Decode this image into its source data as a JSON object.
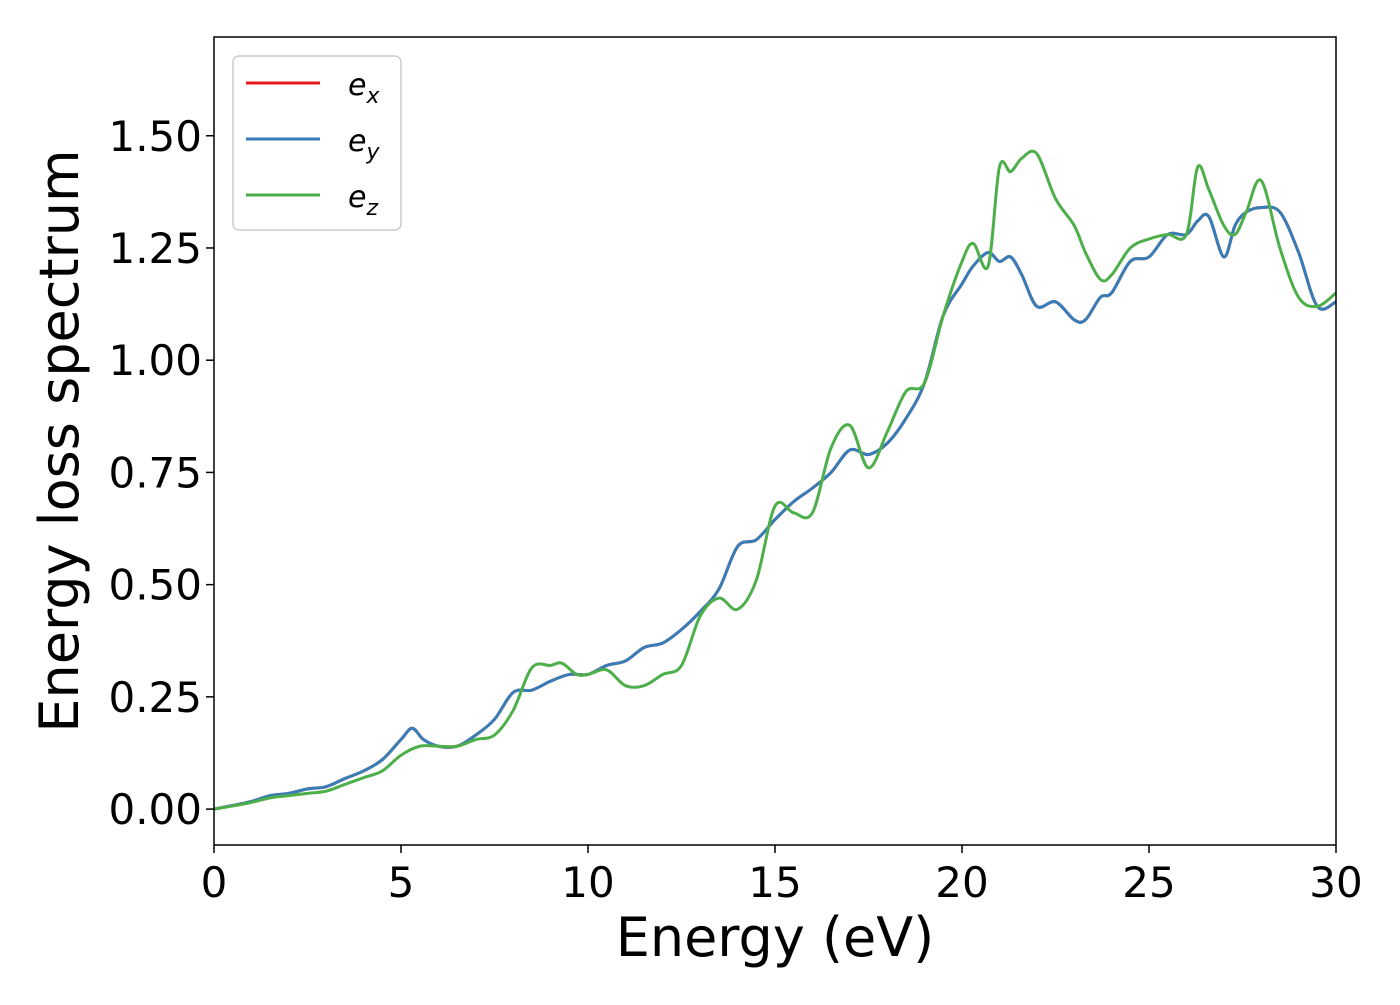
{
  "chart_data": {
    "type": "line",
    "title": "",
    "xlabel": "Energy (eV)",
    "ylabel": "Energy loss spectrum",
    "xlim": [
      0,
      30
    ],
    "ylim": [
      -0.08,
      1.72
    ],
    "xticks": [
      0,
      5,
      10,
      15,
      20,
      25,
      30
    ],
    "yticks": [
      0.0,
      0.25,
      0.5,
      0.75,
      1.0,
      1.25,
      1.5
    ],
    "xtick_labels": [
      "0",
      "5",
      "10",
      "15",
      "20",
      "25",
      "30"
    ],
    "ytick_labels": [
      "0.00",
      "0.25",
      "0.50",
      "0.75",
      "1.00",
      "1.25",
      "1.50"
    ],
    "grid": false,
    "legend": {
      "placement": "top-left",
      "entries": [
        {
          "base": "e",
          "sub": "x",
          "color": "#e41a1c"
        },
        {
          "base": "e",
          "sub": "y",
          "color": "#377eb8"
        },
        {
          "base": "e",
          "sub": "z",
          "color": "#4daf4a"
        }
      ]
    },
    "series": [
      {
        "name": "ex",
        "color": "#e41a1c",
        "x": [
          0,
          0.5,
          1,
          1.5,
          2,
          2.5,
          3,
          3.5,
          4,
          4.5,
          5,
          5.3,
          5.6,
          6,
          6.5,
          7,
          7.5,
          8,
          8.5,
          9,
          9.5,
          10,
          10.5,
          11,
          11.5,
          12,
          12.5,
          13,
          13.5,
          14,
          14.5,
          15,
          15.5,
          16,
          16.5,
          17,
          17.5,
          18,
          18.5,
          19,
          19.5,
          20,
          20.3,
          20.7,
          21,
          21.3,
          21.6,
          22,
          22.5,
          23,
          23.3,
          23.7,
          24,
          24.5,
          25,
          25.5,
          26,
          26.3,
          26.6,
          27,
          27.3,
          27.6,
          28,
          28.5,
          29,
          29.5,
          30
        ],
        "y": [
          0.0,
          0.008,
          0.017,
          0.03,
          0.035,
          0.045,
          0.05,
          0.068,
          0.085,
          0.11,
          0.155,
          0.18,
          0.155,
          0.14,
          0.14,
          0.165,
          0.2,
          0.26,
          0.265,
          0.285,
          0.3,
          0.3,
          0.32,
          0.33,
          0.36,
          0.37,
          0.4,
          0.44,
          0.49,
          0.585,
          0.6,
          0.645,
          0.685,
          0.715,
          0.75,
          0.8,
          0.79,
          0.815,
          0.87,
          0.95,
          1.1,
          1.17,
          1.21,
          1.24,
          1.22,
          1.23,
          1.19,
          1.12,
          1.13,
          1.09,
          1.09,
          1.14,
          1.15,
          1.22,
          1.23,
          1.28,
          1.28,
          1.31,
          1.32,
          1.23,
          1.3,
          1.33,
          1.34,
          1.33,
          1.24,
          1.12,
          1.13
        ]
      },
      {
        "name": "ey",
        "color": "#377eb8",
        "x": [
          0,
          0.5,
          1,
          1.5,
          2,
          2.5,
          3,
          3.5,
          4,
          4.5,
          5,
          5.3,
          5.6,
          6,
          6.5,
          7,
          7.5,
          8,
          8.5,
          9,
          9.5,
          10,
          10.5,
          11,
          11.5,
          12,
          12.5,
          13,
          13.5,
          14,
          14.5,
          15,
          15.5,
          16,
          16.5,
          17,
          17.5,
          18,
          18.5,
          19,
          19.5,
          20,
          20.3,
          20.7,
          21,
          21.3,
          21.6,
          22,
          22.5,
          23,
          23.3,
          23.7,
          24,
          24.5,
          25,
          25.5,
          26,
          26.3,
          26.6,
          27,
          27.3,
          27.6,
          28,
          28.5,
          29,
          29.5,
          30
        ],
        "y": [
          0.0,
          0.008,
          0.017,
          0.03,
          0.035,
          0.045,
          0.05,
          0.068,
          0.085,
          0.11,
          0.155,
          0.18,
          0.155,
          0.14,
          0.14,
          0.165,
          0.2,
          0.26,
          0.265,
          0.285,
          0.3,
          0.3,
          0.32,
          0.33,
          0.36,
          0.37,
          0.4,
          0.44,
          0.49,
          0.585,
          0.6,
          0.645,
          0.685,
          0.715,
          0.75,
          0.8,
          0.79,
          0.815,
          0.87,
          0.95,
          1.1,
          1.17,
          1.21,
          1.24,
          1.22,
          1.23,
          1.19,
          1.12,
          1.13,
          1.09,
          1.09,
          1.14,
          1.15,
          1.22,
          1.23,
          1.28,
          1.28,
          1.31,
          1.32,
          1.23,
          1.3,
          1.33,
          1.34,
          1.33,
          1.24,
          1.12,
          1.13
        ]
      },
      {
        "name": "ez",
        "color": "#4daf4a",
        "x": [
          0,
          0.5,
          1,
          1.5,
          2,
          2.5,
          3,
          3.5,
          4,
          4.5,
          5,
          5.5,
          6,
          6.5,
          7,
          7.5,
          8,
          8.5,
          9,
          9.3,
          9.7,
          10,
          10.5,
          11,
          11.5,
          12,
          12.5,
          13,
          13.5,
          14,
          14.5,
          15,
          15.5,
          16,
          16.5,
          17,
          17.5,
          18,
          18.5,
          19,
          19.5,
          20,
          20.3,
          20.7,
          21,
          21.3,
          21.6,
          22,
          22.5,
          23,
          23.3,
          23.7,
          24,
          24.5,
          25,
          25.5,
          26,
          26.3,
          26.6,
          27,
          27.3,
          27.6,
          28,
          28.5,
          29,
          29.5,
          30
        ],
        "y": [
          0.0,
          0.007,
          0.015,
          0.025,
          0.03,
          0.035,
          0.04,
          0.055,
          0.07,
          0.085,
          0.12,
          0.14,
          0.14,
          0.14,
          0.155,
          0.165,
          0.22,
          0.315,
          0.32,
          0.325,
          0.3,
          0.3,
          0.31,
          0.275,
          0.275,
          0.3,
          0.32,
          0.43,
          0.47,
          0.445,
          0.51,
          0.675,
          0.66,
          0.66,
          0.805,
          0.855,
          0.76,
          0.84,
          0.93,
          0.95,
          1.1,
          1.22,
          1.26,
          1.21,
          1.43,
          1.42,
          1.45,
          1.46,
          1.36,
          1.3,
          1.24,
          1.18,
          1.19,
          1.25,
          1.27,
          1.28,
          1.28,
          1.43,
          1.38,
          1.3,
          1.28,
          1.33,
          1.4,
          1.25,
          1.14,
          1.12,
          1.15
        ]
      }
    ]
  }
}
